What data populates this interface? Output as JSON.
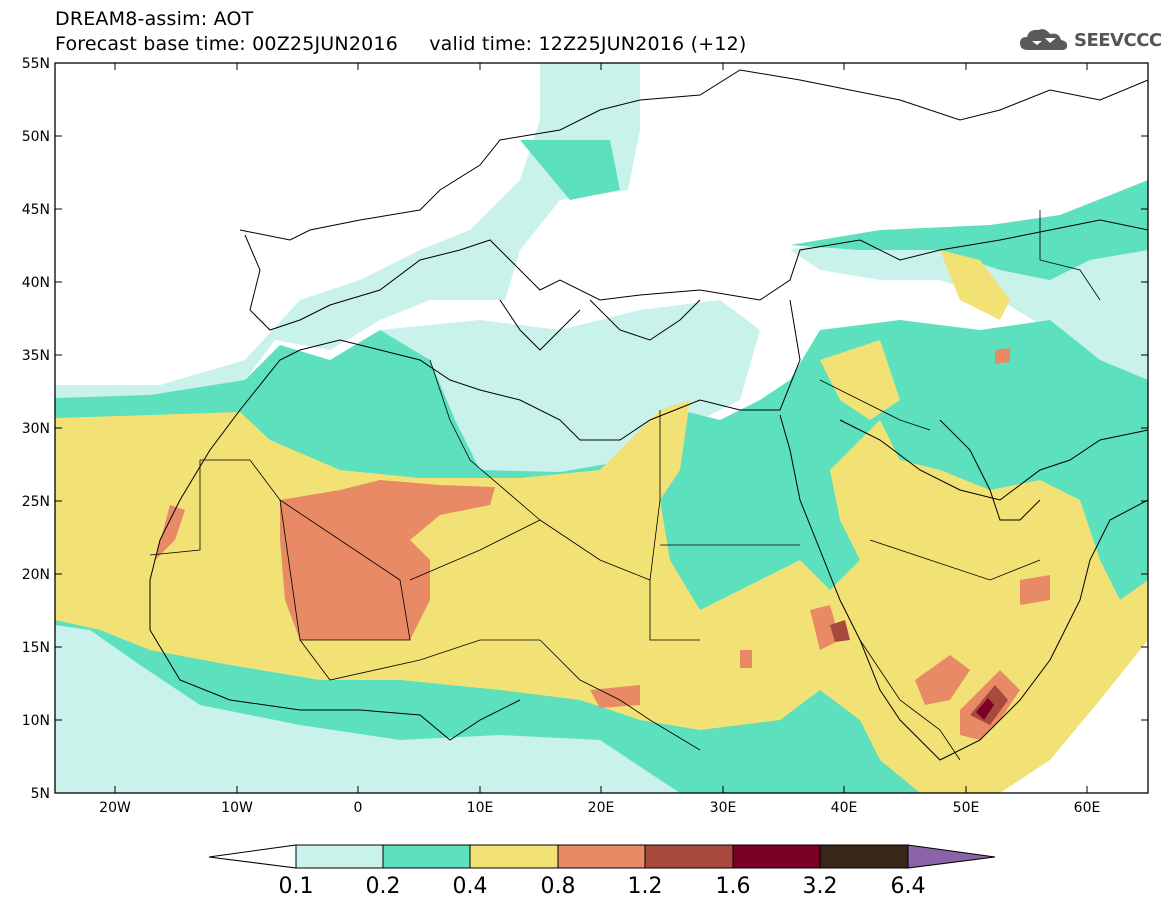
{
  "header": {
    "title": "DREAM8-assim: AOT",
    "base_label": "Forecast base time: 00Z25JUN2016",
    "valid_label": "valid time: 12Z25JUN2016 (+12)"
  },
  "brand": {
    "name": "SEEVCCC",
    "icon": "cloud-logo-icon"
  },
  "map": {
    "lat_labels": [
      "55N",
      "50N",
      "45N",
      "40N",
      "35N",
      "30N",
      "25N",
      "20N",
      "15N",
      "10N",
      "5N"
    ],
    "lon_labels": [
      "20W",
      "10W",
      "0",
      "10E",
      "20E",
      "30E",
      "40E",
      "50E",
      "60E"
    ]
  },
  "legend": {
    "labels": [
      "0.1",
      "0.2",
      "0.4",
      "0.8",
      "1.2",
      "1.6",
      "3.2",
      "6.4"
    ],
    "colors": [
      "#ffffff",
      "#c8f2ea",
      "#5ce0bd",
      "#f2e275",
      "#e88a66",
      "#a8493e",
      "#7a0026",
      "#3a2618",
      "#8c63a8"
    ]
  },
  "colors": {
    "c01": "#c8f2ea",
    "c02": "#5ce0bd",
    "c04": "#f2e275",
    "c08": "#e88a66",
    "c12": "#a8493e",
    "c16": "#7a0026",
    "c32": "#3a2618"
  }
}
